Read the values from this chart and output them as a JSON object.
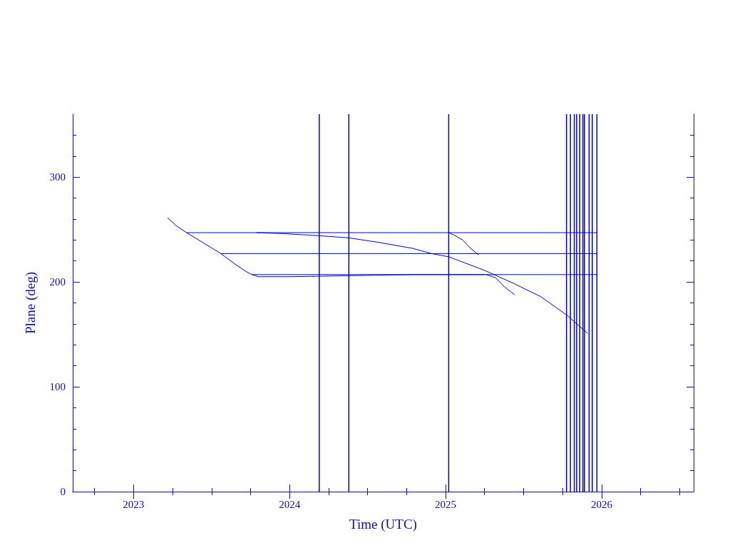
{
  "chart_data": {
    "type": "line",
    "xlabel": "Time (UTC)",
    "ylabel": "Plane (deg)",
    "xlim": [
      2022.61,
      2026.59
    ],
    "xticks": [
      2023,
      2024,
      2025,
      2026
    ],
    "ylim": [
      0,
      360
    ],
    "yticks": [
      0,
      100,
      200,
      300
    ],
    "grid": false,
    "marker": "none",
    "series": [
      {
        "color": "#0000cc",
        "x": [
          2023.22,
          2023.27,
          2023.34,
          2023.45,
          2023.56,
          2023.65,
          2023.72,
          2023.76,
          2023.8,
          2024.0,
          2024.4,
          2024.8,
          2025.25
        ],
        "values": [
          261,
          254,
          247,
          237,
          227,
          217,
          210,
          207,
          205,
          205,
          206,
          207,
          207
        ]
      },
      {
        "color": "#0000cc",
        "x": [
          2023.34,
          2025.97
        ],
        "values": [
          247,
          247
        ]
      },
      {
        "color": "#0000cc",
        "x": [
          2023.56,
          2025.97
        ],
        "values": [
          227,
          227
        ]
      },
      {
        "color": "#0000cc",
        "x": [
          2023.76,
          2025.97
        ],
        "values": [
          207,
          207
        ]
      },
      {
        "color": "#0000cc",
        "x": [
          2023.79,
          2023.97,
          2024.2,
          2024.38,
          2024.56,
          2024.79,
          2024.91,
          2025.02,
          2025.25,
          2025.43,
          2025.61,
          2025.78,
          2025.91
        ],
        "values": [
          247,
          246,
          244,
          242,
          238,
          232,
          227,
          224,
          211,
          199,
          186,
          168,
          151
        ]
      },
      {
        "color": "#0000cc",
        "x": [
          2025.02,
          2025.05,
          2025.11,
          2025.16,
          2025.21
        ],
        "values": [
          247,
          245,
          240,
          232,
          226
        ]
      },
      {
        "color": "#0000cc",
        "x": [
          2025.26,
          2025.32,
          2025.38,
          2025.44
        ],
        "values": [
          207,
          204,
          195,
          188
        ]
      }
    ],
    "ref_lines": [
      {
        "axis": "x",
        "value": 2024.19,
        "color": "#0000cc"
      },
      {
        "axis": "x",
        "value": 2024.38,
        "color": "#0000cc"
      },
      {
        "axis": "x",
        "value": 2025.02,
        "color": "#0000cc"
      },
      {
        "axis": "x",
        "value": 2025.775,
        "color": "#0000cc"
      },
      {
        "axis": "x",
        "value": 2025.8,
        "color": "#0000cc"
      },
      {
        "axis": "x",
        "value": 2025.825,
        "color": "#0000cc"
      },
      {
        "axis": "x",
        "value": 2025.84,
        "color": "#0000cc"
      },
      {
        "axis": "x",
        "value": 2025.86,
        "color": "#0000cc"
      },
      {
        "axis": "x",
        "value": 2025.88,
        "color": "#0000cc"
      },
      {
        "axis": "x",
        "value": 2025.89,
        "color": "#0000cc"
      },
      {
        "axis": "x",
        "value": 2025.92,
        "color": "#0000cc"
      },
      {
        "axis": "x",
        "value": 2025.94,
        "color": "#0000cc"
      },
      {
        "axis": "x",
        "value": 2025.97,
        "color": "#0000cc"
      }
    ]
  }
}
